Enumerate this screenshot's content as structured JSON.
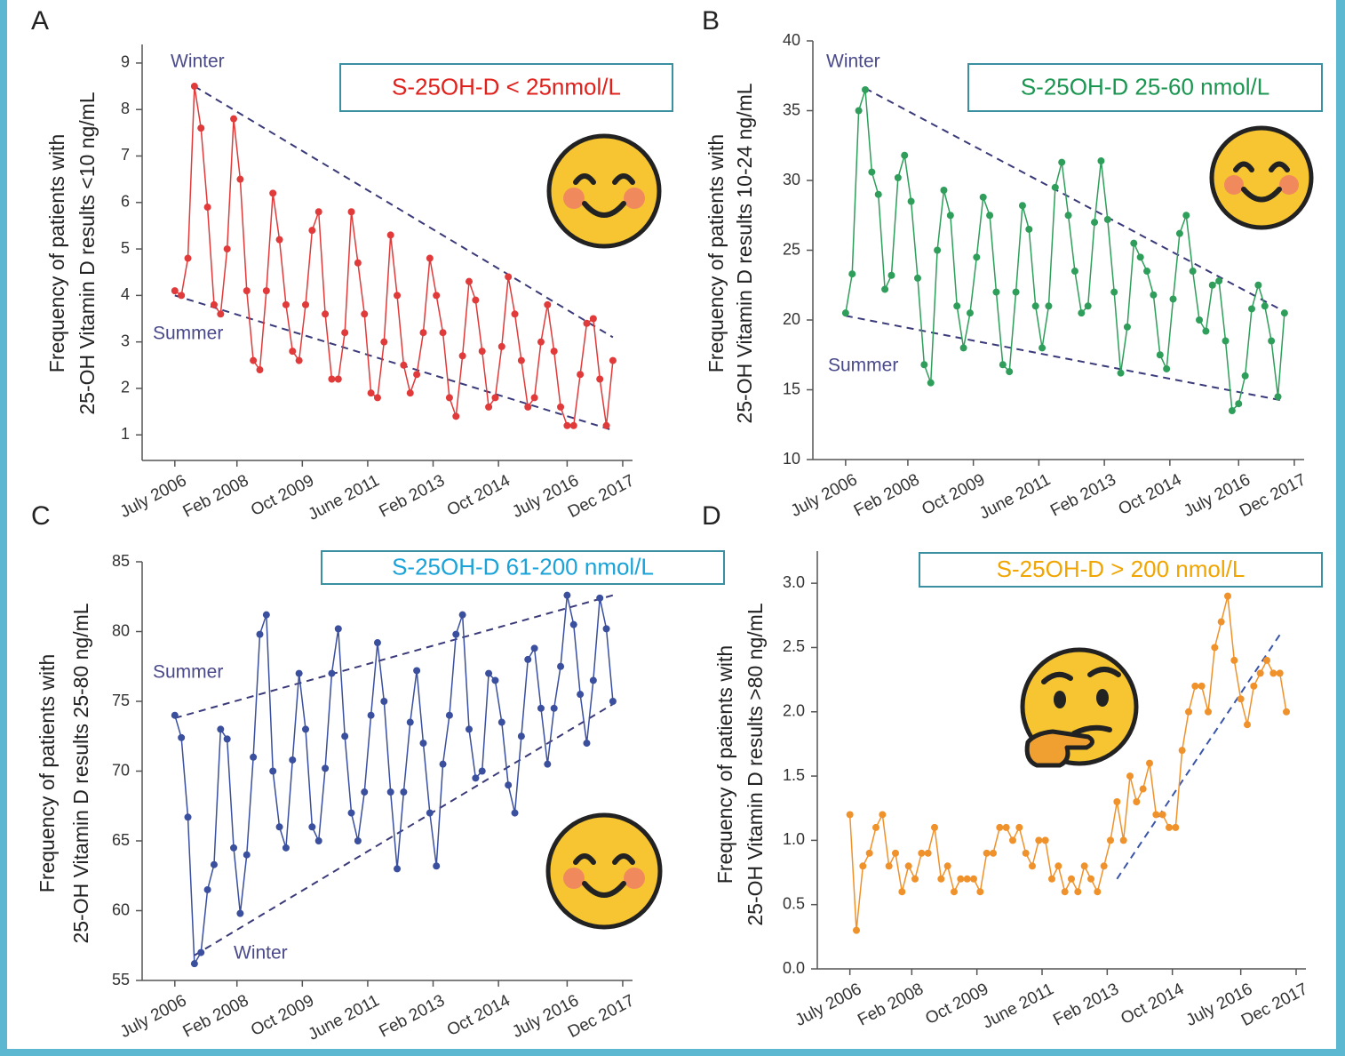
{
  "chart_data": [
    {
      "type": "line",
      "panel_label": "A",
      "ylabel": [
        "Frequency of patients with",
        "25-OH Vitamin D results <10 ng/mL"
      ],
      "x": [
        "2006-07",
        "2006-09",
        "2006-11",
        "2007-01",
        "2007-03",
        "2007-05",
        "2007-07",
        "2007-09",
        "2007-11",
        "2008-01",
        "2008-03",
        "2008-05",
        "2008-07",
        "2008-09",
        "2008-11",
        "2009-01",
        "2009-03",
        "2009-05",
        "2009-07",
        "2009-09",
        "2009-11",
        "2010-01",
        "2010-03",
        "2010-05",
        "2010-07",
        "2010-09",
        "2010-11",
        "2011-01",
        "2011-03",
        "2011-05",
        "2011-07",
        "2011-09",
        "2011-11",
        "2012-01",
        "2012-03",
        "2012-05",
        "2012-07",
        "2012-09",
        "2012-11",
        "2013-01",
        "2013-03",
        "2013-05",
        "2013-07",
        "2013-09",
        "2013-11",
        "2014-01",
        "2014-03",
        "2014-05",
        "2014-07",
        "2014-09",
        "2014-11",
        "2015-01",
        "2015-03",
        "2015-05",
        "2015-07",
        "2015-09",
        "2015-11",
        "2016-01",
        "2016-03",
        "2016-05",
        "2016-07",
        "2016-09",
        "2016-11",
        "2017-01",
        "2017-03",
        "2017-05",
        "2017-07",
        "2017-09"
      ],
      "series": [
        {
          "name": "S-25OH-D < 25nmol/L",
          "color": "#e03a3a",
          "label_color": "#e0201b",
          "values": [
            4.1,
            4.0,
            4.8,
            8.5,
            7.6,
            5.9,
            3.8,
            3.6,
            5.0,
            7.8,
            6.5,
            4.1,
            2.6,
            2.4,
            4.1,
            6.2,
            5.2,
            3.8,
            2.8,
            2.6,
            3.8,
            5.4,
            5.8,
            3.6,
            2.2,
            2.2,
            3.2,
            5.8,
            4.7,
            3.6,
            1.9,
            1.8,
            3.0,
            5.3,
            4.0,
            2.5,
            1.9,
            2.3,
            3.2,
            4.8,
            4.0,
            3.2,
            1.8,
            1.4,
            2.7,
            4.3,
            3.9,
            2.8,
            1.6,
            1.8,
            2.9,
            4.4,
            3.6,
            2.6,
            1.6,
            1.8,
            3.0,
            3.8,
            2.8,
            1.6,
            1.2,
            1.2,
            2.3,
            3.4,
            3.5,
            2.2,
            1.2,
            2.6
          ]
        }
      ],
      "xlim": [
        "2005-09",
        "2018-03"
      ],
      "ylim": [
        0.45,
        9.4
      ],
      "xticks": [
        {
          "value": "2006-07",
          "label": "July 2006"
        },
        {
          "value": "2008-02",
          "label": "Feb 2008"
        },
        {
          "value": "2009-10",
          "label": "Oct 2009"
        },
        {
          "value": "2011-06",
          "label": "June 2011"
        },
        {
          "value": "2013-02",
          "label": "Feb 2013"
        },
        {
          "value": "2014-10",
          "label": "Oct 2014"
        },
        {
          "value": "2016-07",
          "label": "July 2016"
        },
        {
          "value": "2017-12",
          "label": "Dec 2017"
        }
      ],
      "yticks": [
        1,
        2,
        3,
        4,
        5,
        6,
        7,
        8,
        9
      ],
      "trend_lines": [
        {
          "x": [
            "2007-01",
            "2017-09"
          ],
          "y": [
            8.5,
            3.1
          ]
        },
        {
          "x": [
            "2006-07",
            "2017-09"
          ],
          "y": [
            4.0,
            1.1
          ]
        }
      ],
      "annotations": [
        "Winter",
        "Summer"
      ],
      "trend_color": "#3a3a7a",
      "annotation_color": "#4a4a8a"
    },
    {
      "type": "line",
      "panel_label": "B",
      "ylabel": [
        "Frequency of patients with",
        "25-OH Vitamin D results 10-24 ng/mL"
      ],
      "x": [
        "2006-07",
        "2006-09",
        "2006-11",
        "2007-01",
        "2007-03",
        "2007-05",
        "2007-07",
        "2007-09",
        "2007-11",
        "2008-01",
        "2008-03",
        "2008-05",
        "2008-07",
        "2008-09",
        "2008-11",
        "2009-01",
        "2009-03",
        "2009-05",
        "2009-07",
        "2009-09",
        "2009-11",
        "2010-01",
        "2010-03",
        "2010-05",
        "2010-07",
        "2010-09",
        "2010-11",
        "2011-01",
        "2011-03",
        "2011-05",
        "2011-07",
        "2011-09",
        "2011-11",
        "2012-01",
        "2012-03",
        "2012-05",
        "2012-07",
        "2012-09",
        "2012-11",
        "2013-01",
        "2013-03",
        "2013-05",
        "2013-07",
        "2013-09",
        "2013-11",
        "2014-01",
        "2014-03",
        "2014-05",
        "2014-07",
        "2014-09",
        "2014-11",
        "2015-01",
        "2015-03",
        "2015-05",
        "2015-07",
        "2015-09",
        "2015-11",
        "2016-01",
        "2016-03",
        "2016-05",
        "2016-07",
        "2016-09",
        "2016-11",
        "2017-01",
        "2017-03",
        "2017-05",
        "2017-07",
        "2017-09"
      ],
      "series": [
        {
          "name": "S-25OH-D 25-60 nmol/L",
          "color": "#2e9e5a",
          "label_color": "#1a9650",
          "values": [
            20.5,
            23.3,
            35.0,
            36.5,
            30.6,
            29.0,
            22.2,
            23.2,
            30.2,
            31.8,
            28.5,
            23.0,
            16.8,
            15.5,
            25.0,
            29.3,
            27.5,
            21.0,
            18.0,
            20.5,
            24.5,
            28.8,
            27.5,
            22.0,
            16.8,
            16.3,
            22.0,
            28.2,
            26.5,
            21.0,
            18.0,
            21.0,
            29.5,
            31.3,
            27.5,
            23.5,
            20.5,
            21.0,
            27.0,
            31.4,
            27.2,
            22.0,
            16.2,
            19.5,
            25.5,
            24.5,
            23.5,
            21.8,
            17.5,
            16.5,
            21.5,
            26.2,
            27.5,
            23.5,
            20.0,
            19.2,
            22.5,
            22.8,
            18.5,
            13.5,
            14.0,
            16.0,
            20.8,
            22.5,
            21.0,
            18.5,
            14.5,
            20.5
          ]
        }
      ],
      "xlim": [
        "2005-09",
        "2018-03"
      ],
      "ylim": [
        10,
        40
      ],
      "xticks": [
        {
          "value": "2006-07",
          "label": "July 2006"
        },
        {
          "value": "2008-02",
          "label": "Feb 2008"
        },
        {
          "value": "2009-10",
          "label": "Oct 2009"
        },
        {
          "value": "2011-06",
          "label": "June 2011"
        },
        {
          "value": "2013-02",
          "label": "Feb 2013"
        },
        {
          "value": "2014-10",
          "label": "Oct 2014"
        },
        {
          "value": "2016-07",
          "label": "July 2016"
        },
        {
          "value": "2017-12",
          "label": "Dec 2017"
        }
      ],
      "yticks": [
        10,
        15,
        20,
        25,
        30,
        35,
        40
      ],
      "trend_lines": [
        {
          "x": [
            "2007-01",
            "2017-09"
          ],
          "y": [
            36.6,
            20.6
          ]
        },
        {
          "x": [
            "2006-07",
            "2017-09"
          ],
          "y": [
            20.3,
            14.2
          ]
        }
      ],
      "annotations": [
        "Winter",
        "Summer"
      ],
      "trend_color": "#3a3a7a",
      "annotation_color": "#4a4a8a"
    },
    {
      "type": "line",
      "panel_label": "C",
      "ylabel": [
        "Frequency of patients with",
        "25-OH Vitamin D results 25-80 ng/mL"
      ],
      "x": [
        "2006-07",
        "2006-09",
        "2006-11",
        "2007-01",
        "2007-03",
        "2007-05",
        "2007-07",
        "2007-09",
        "2007-11",
        "2008-01",
        "2008-03",
        "2008-05",
        "2008-07",
        "2008-09",
        "2008-11",
        "2009-01",
        "2009-03",
        "2009-05",
        "2009-07",
        "2009-09",
        "2009-11",
        "2010-01",
        "2010-03",
        "2010-05",
        "2010-07",
        "2010-09",
        "2010-11",
        "2011-01",
        "2011-03",
        "2011-05",
        "2011-07",
        "2011-09",
        "2011-11",
        "2012-01",
        "2012-03",
        "2012-05",
        "2012-07",
        "2012-09",
        "2012-11",
        "2013-01",
        "2013-03",
        "2013-05",
        "2013-07",
        "2013-09",
        "2013-11",
        "2014-01",
        "2014-03",
        "2014-05",
        "2014-07",
        "2014-09",
        "2014-11",
        "2015-01",
        "2015-03",
        "2015-05",
        "2015-07",
        "2015-09",
        "2015-11",
        "2016-01",
        "2016-03",
        "2016-05",
        "2016-07",
        "2016-09",
        "2016-11",
        "2017-01",
        "2017-03",
        "2017-05",
        "2017-07",
        "2017-09"
      ],
      "series": [
        {
          "name": "S-25OH-D 61-200 nmol/L",
          "color": "#3a4f9e",
          "label_color": "#1aa3d8",
          "values": [
            74.0,
            72.4,
            66.7,
            56.2,
            57.0,
            61.5,
            63.3,
            73.0,
            72.3,
            64.5,
            59.8,
            64.0,
            71.0,
            79.8,
            81.2,
            70.0,
            66.0,
            64.5,
            70.8,
            77.0,
            73.0,
            66.0,
            65.0,
            70.2,
            77.0,
            80.2,
            72.5,
            67.0,
            65.0,
            68.5,
            74.0,
            79.2,
            75.0,
            68.5,
            63.0,
            68.5,
            73.5,
            77.2,
            72.0,
            67.0,
            63.2,
            70.5,
            74.0,
            79.8,
            81.2,
            73.0,
            69.5,
            70.0,
            77.0,
            76.5,
            73.5,
            69.0,
            67.0,
            72.5,
            78.0,
            78.8,
            74.5,
            70.5,
            74.5,
            77.5,
            82.6,
            80.5,
            75.5,
            72.0,
            76.5,
            82.4,
            80.2,
            75.0
          ]
        }
      ],
      "xlim": [
        "2005-09",
        "2018-03"
      ],
      "ylim": [
        55,
        85
      ],
      "xticks": [
        {
          "value": "2006-07",
          "label": "July 2006"
        },
        {
          "value": "2008-02",
          "label": "Feb 2008"
        },
        {
          "value": "2009-10",
          "label": "Oct 2009"
        },
        {
          "value": "2011-06",
          "label": "June 2011"
        },
        {
          "value": "2013-02",
          "label": "Feb 2013"
        },
        {
          "value": "2014-10",
          "label": "Oct 2014"
        },
        {
          "value": "2016-07",
          "label": "July 2016"
        },
        {
          "value": "2017-12",
          "label": "Dec 2017"
        }
      ],
      "yticks": [
        55,
        60,
        65,
        70,
        75,
        80,
        85
      ],
      "trend_lines": [
        {
          "x": [
            "2006-07",
            "2017-09"
          ],
          "y": [
            73.8,
            82.6
          ]
        },
        {
          "x": [
            "2007-01",
            "2017-09"
          ],
          "y": [
            56.8,
            74.8
          ]
        }
      ],
      "annotations": [
        "Summer",
        "Winter"
      ],
      "trend_color": "#3a3a7a",
      "annotation_color": "#4a4a8a"
    },
    {
      "type": "line",
      "panel_label": "D",
      "ylabel": [
        "Frequency of patients with",
        "25-OH Vitamin D results >80 ng/mL"
      ],
      "x": [
        "2006-07",
        "2006-09",
        "2006-11",
        "2007-01",
        "2007-03",
        "2007-05",
        "2007-07",
        "2007-09",
        "2007-11",
        "2008-01",
        "2008-03",
        "2008-05",
        "2008-07",
        "2008-09",
        "2008-11",
        "2009-01",
        "2009-03",
        "2009-05",
        "2009-07",
        "2009-09",
        "2009-11",
        "2010-01",
        "2010-03",
        "2010-05",
        "2010-07",
        "2010-09",
        "2010-11",
        "2011-01",
        "2011-03",
        "2011-05",
        "2011-07",
        "2011-09",
        "2011-11",
        "2012-01",
        "2012-03",
        "2012-05",
        "2012-07",
        "2012-09",
        "2012-11",
        "2013-01",
        "2013-03",
        "2013-05",
        "2013-07",
        "2013-09",
        "2013-11",
        "2014-01",
        "2014-03",
        "2014-05",
        "2014-07",
        "2014-09",
        "2014-11",
        "2015-01",
        "2015-03",
        "2015-05",
        "2015-07",
        "2015-09",
        "2015-11",
        "2016-01",
        "2016-03",
        "2016-05",
        "2016-07",
        "2016-09",
        "2016-11",
        "2017-01",
        "2017-03",
        "2017-05",
        "2017-07",
        "2017-09"
      ],
      "series": [
        {
          "name": "S-25OH-D > 200 nmol/L",
          "color": "#f0922b",
          "label_color": "#f0a500",
          "values": [
            1.2,
            0.3,
            0.8,
            0.9,
            1.1,
            1.2,
            0.8,
            0.9,
            0.6,
            0.8,
            0.7,
            0.9,
            0.9,
            1.1,
            0.7,
            0.8,
            0.6,
            0.7,
            0.7,
            0.7,
            0.6,
            0.9,
            0.9,
            1.1,
            1.1,
            1.0,
            1.1,
            0.9,
            0.8,
            1.0,
            1.0,
            0.7,
            0.8,
            0.6,
            0.7,
            0.6,
            0.8,
            0.7,
            0.6,
            0.8,
            1.0,
            1.3,
            1.0,
            1.5,
            1.3,
            1.4,
            1.6,
            1.2,
            1.2,
            1.1,
            1.1,
            1.7,
            2.0,
            2.2,
            2.2,
            2.0,
            2.5,
            2.7,
            2.9,
            2.4,
            2.1,
            1.9,
            2.2,
            2.3,
            2.4,
            2.3,
            2.3,
            2.0
          ]
        }
      ],
      "xlim": [
        "2005-09",
        "2018-03"
      ],
      "ylim": [
        0,
        3.25
      ],
      "xticks": [
        {
          "value": "2006-07",
          "label": "July 2006"
        },
        {
          "value": "2008-02",
          "label": "Feb 2008"
        },
        {
          "value": "2009-10",
          "label": "Oct 2009"
        },
        {
          "value": "2011-06",
          "label": "June 2011"
        },
        {
          "value": "2013-02",
          "label": "Feb 2013"
        },
        {
          "value": "2014-10",
          "label": "Oct 2014"
        },
        {
          "value": "2016-07",
          "label": "July 2016"
        },
        {
          "value": "2017-12",
          "label": "Dec 2017"
        }
      ],
      "yticks": [
        {
          "value": 0,
          "label": "0.0"
        },
        0.5,
        {
          "value": 1,
          "label": "1.0"
        },
        1.5,
        {
          "value": 2,
          "label": "2.0"
        },
        2.5,
        {
          "value": 3,
          "label": "3.0"
        }
      ],
      "trend_lines": [
        {
          "x": [
            "2013-05",
            "2017-07"
          ],
          "y": [
            0.7,
            2.6
          ]
        }
      ],
      "annotations": [],
      "trend_color": "#3a55a8",
      "annotation_color": "#4a4a8a"
    }
  ]
}
